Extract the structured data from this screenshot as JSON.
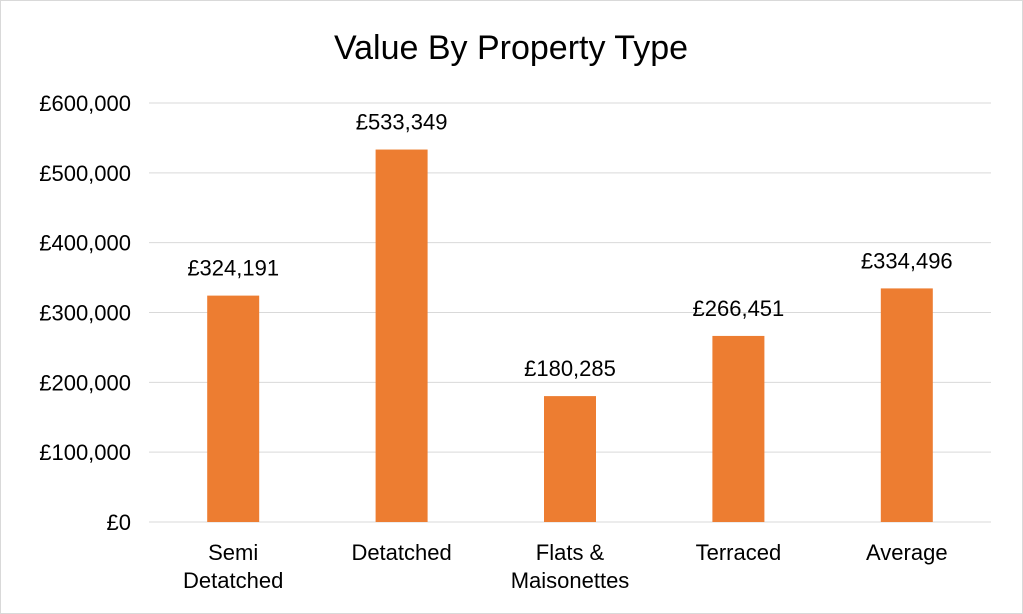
{
  "chart_data": {
    "type": "bar",
    "title": "Value By Property Type",
    "xlabel": "",
    "ylabel": "",
    "categories": [
      [
        "Semi",
        "Detatched"
      ],
      [
        "Detatched"
      ],
      [
        "Flats &",
        "Maisonettes"
      ],
      [
        "Terraced"
      ],
      [
        "Average"
      ]
    ],
    "values": [
      324191,
      533349,
      180285,
      266451,
      334496
    ],
    "data_labels": [
      "£324,191",
      "£533,349",
      "£180,285",
      "£266,451",
      "£334,496"
    ],
    "ylim": [
      0,
      600000
    ],
    "yticks": [
      0,
      100000,
      200000,
      300000,
      400000,
      500000,
      600000
    ],
    "ytick_labels": [
      "£0",
      "£100,000",
      "£200,000",
      "£300,000",
      "£400,000",
      "£500,000",
      "£600,000"
    ],
    "grid": true,
    "legend": "none",
    "bar_color": "#ED7D31",
    "grid_color": "#D9D9D9"
  }
}
